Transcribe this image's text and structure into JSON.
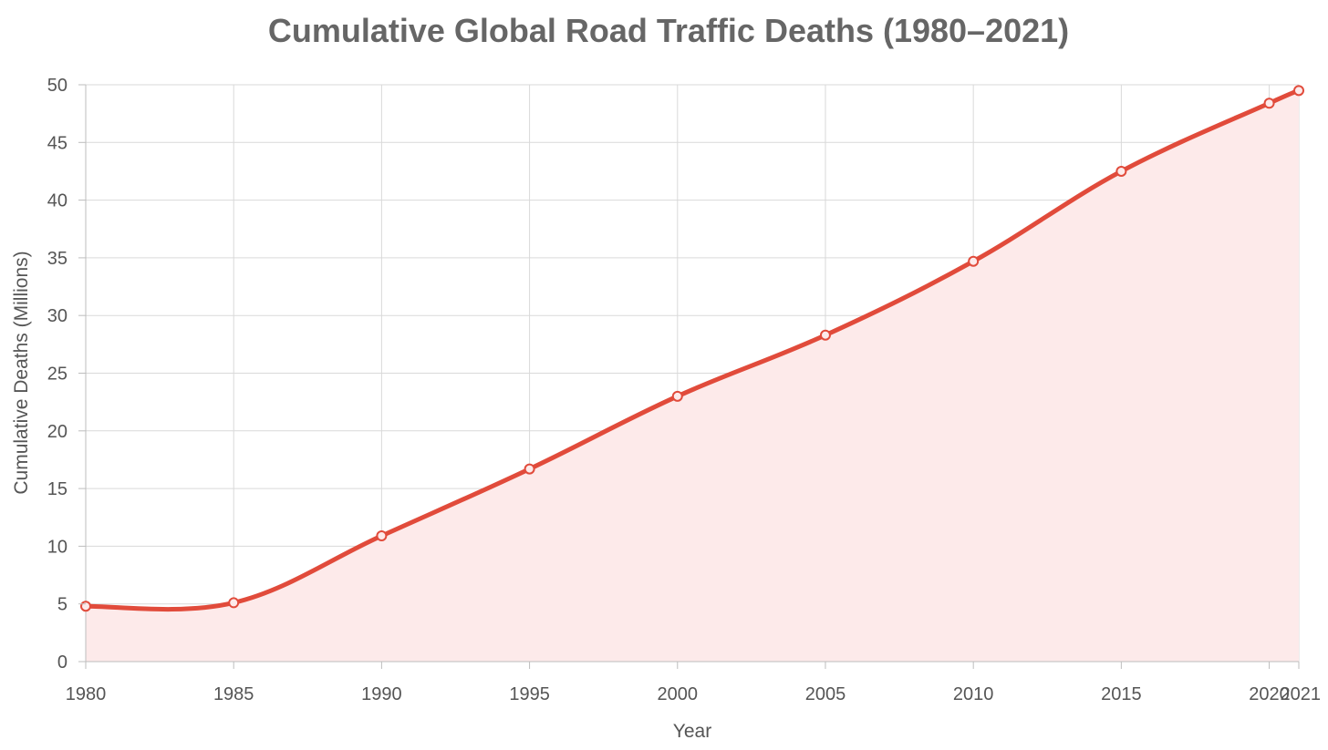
{
  "chart_data": {
    "type": "line",
    "title": "Cumulative Global Road Traffic Deaths (1980–2021)",
    "xlabel": "Year",
    "ylabel": "Cumulative Deaths (Millions)",
    "x": [
      1980,
      1985,
      1990,
      1995,
      2000,
      2005,
      2010,
      2015,
      2020,
      2021
    ],
    "series": [
      {
        "name": "Cumulative Deaths",
        "values": [
          4.8,
          5.1,
          10.9,
          16.7,
          23.0,
          28.3,
          34.7,
          42.5,
          48.4,
          49.5
        ]
      }
    ],
    "x_ticks": [
      "1980",
      "1985",
      "1990",
      "1995",
      "2000",
      "2005",
      "2010",
      "2015",
      "2020",
      "2021"
    ],
    "y_ticks": [
      "0",
      "5",
      "10",
      "15",
      "20",
      "25",
      "30",
      "35",
      "40",
      "45",
      "50"
    ],
    "ylim": [
      0,
      50
    ],
    "grid": true,
    "legend": "none",
    "line_color": "#e14b3b",
    "fill_color": "#fdeaea"
  }
}
